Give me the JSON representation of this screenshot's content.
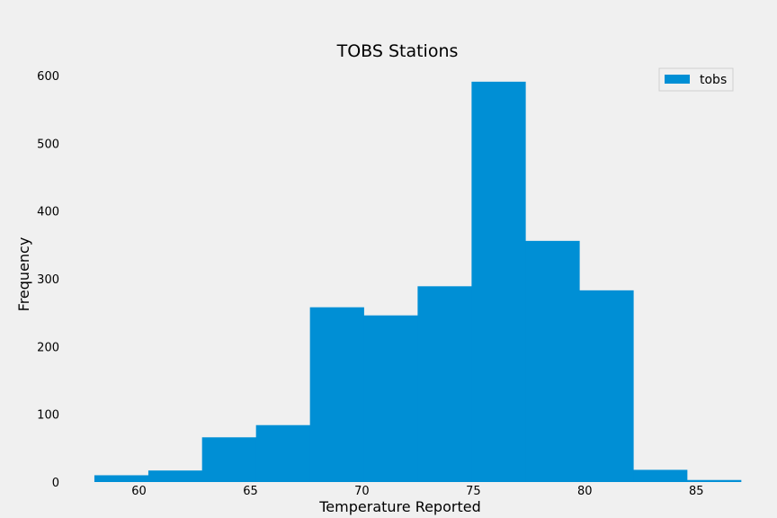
{
  "chart_data": {
    "type": "bar",
    "title": "TOBS Stations",
    "xlabel": "Temperature Reported",
    "ylabel": "Frequency",
    "legend": {
      "placement": "top-right",
      "entries": [
        "tobs"
      ]
    },
    "grid": false,
    "xlim": [
      56.55,
      87.45
    ],
    "ylim": [
      0,
      620
    ],
    "xticks": [
      60,
      65,
      70,
      75,
      80,
      85
    ],
    "yticks": [
      0,
      100,
      200,
      300,
      400,
      500,
      600
    ],
    "bin_edges": [
      58.0,
      60.42,
      62.83,
      65.25,
      67.67,
      70.08,
      72.5,
      74.92,
      77.33,
      79.75,
      82.17,
      84.58,
      87.0
    ],
    "series": [
      {
        "name": "tobs",
        "color": "#008fd5",
        "values": [
          10,
          17,
          66,
          84,
          258,
          246,
          289,
          591,
          356,
          283,
          18,
          3
        ]
      }
    ]
  }
}
